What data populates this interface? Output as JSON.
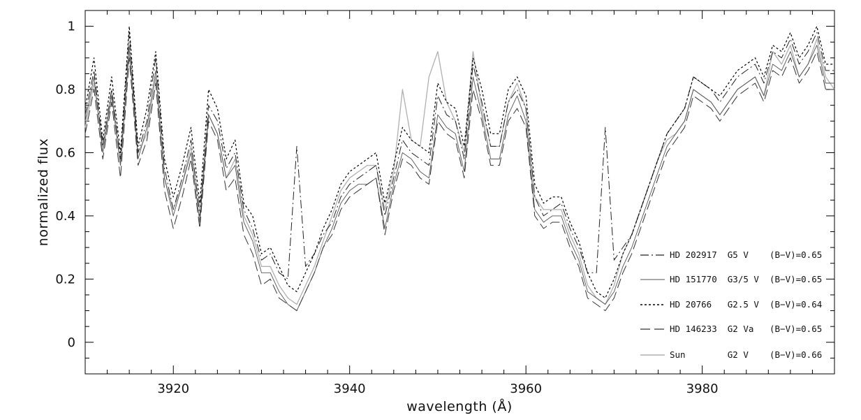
{
  "chart_data": {
    "type": "line",
    "xlabel": "wavelength (Å)",
    "ylabel": "normalized flux",
    "xlim": [
      3910,
      3995
    ],
    "ylim": [
      -0.1,
      1.05
    ],
    "x_ticks": [
      "3920",
      "3940",
      "3960",
      "3980"
    ],
    "y_ticks": [
      "0",
      "0.2",
      "0.4",
      "0.6",
      "0.8",
      "1"
    ],
    "grid": false,
    "legend_position": "bottom-right",
    "x": [
      3910,
      3911,
      3912,
      3913,
      3914,
      3915,
      3916,
      3917,
      3918,
      3919,
      3920,
      3921,
      3922,
      3923,
      3924,
      3925,
      3926,
      3927,
      3928,
      3929,
      3930,
      3931,
      3932,
      3933,
      3934,
      3935,
      3936,
      3937,
      3938,
      3939,
      3940,
      3941,
      3942,
      3943,
      3944,
      3945,
      3946,
      3947,
      3948,
      3949,
      3950,
      3951,
      3952,
      3953,
      3954,
      3955,
      3956,
      3957,
      3958,
      3959,
      3960,
      3961,
      3962,
      3963,
      3964,
      3965,
      3966,
      3967,
      3968,
      3969,
      3970,
      3971,
      3972,
      3973,
      3974,
      3975,
      3976,
      3977,
      3978,
      3979,
      3980,
      3981,
      3982,
      3983,
      3984,
      3985,
      3986,
      3987,
      3988,
      3989,
      3990,
      3991,
      3992,
      3993,
      3994,
      3995
    ],
    "series": [
      {
        "name": "HD 202917 G5 V (B−V)=0.65",
        "label": "HD 202917  G5 V    (B−V)=0.65",
        "dash": "12 4 2 4",
        "color": "#222222",
        "width": 1.0,
        "values": [
          0.72,
          0.86,
          0.62,
          0.8,
          0.58,
          0.98,
          0.6,
          0.7,
          0.9,
          0.55,
          0.42,
          0.52,
          0.64,
          0.4,
          0.75,
          0.7,
          0.55,
          0.6,
          0.42,
          0.36,
          0.26,
          0.28,
          0.22,
          0.2,
          0.62,
          0.24,
          0.28,
          0.34,
          0.38,
          0.46,
          0.5,
          0.52,
          0.54,
          0.56,
          0.4,
          0.52,
          0.64,
          0.6,
          0.58,
          0.56,
          0.78,
          0.72,
          0.7,
          0.58,
          0.88,
          0.76,
          0.62,
          0.62,
          0.76,
          0.8,
          0.74,
          0.46,
          0.4,
          0.42,
          0.44,
          0.36,
          0.3,
          0.22,
          0.22,
          0.68,
          0.26,
          0.3,
          0.34,
          0.42,
          0.5,
          0.58,
          0.66,
          0.7,
          0.74,
          0.84,
          0.82,
          0.8,
          0.76,
          0.8,
          0.84,
          0.86,
          0.88,
          0.82,
          0.92,
          0.9,
          0.96,
          0.88,
          0.92,
          0.98,
          0.86,
          0.86
        ]
      },
      {
        "name": "HD 151770 G3/5 V (B−V)=0.65",
        "label": "HD 151770  G3/5 V  (B−V)=0.65",
        "dash": "",
        "color": "#555555",
        "width": 0.9,
        "values": [
          0.7,
          0.84,
          0.6,
          0.78,
          0.56,
          0.94,
          0.58,
          0.68,
          0.86,
          0.52,
          0.4,
          0.5,
          0.6,
          0.38,
          0.72,
          0.66,
          0.52,
          0.56,
          0.38,
          0.32,
          0.22,
          0.22,
          0.16,
          0.12,
          0.1,
          0.16,
          0.22,
          0.3,
          0.36,
          0.44,
          0.48,
          0.5,
          0.5,
          0.52,
          0.36,
          0.5,
          0.6,
          0.58,
          0.54,
          0.52,
          0.72,
          0.68,
          0.66,
          0.54,
          0.84,
          0.72,
          0.58,
          0.58,
          0.72,
          0.78,
          0.7,
          0.42,
          0.38,
          0.4,
          0.4,
          0.32,
          0.26,
          0.16,
          0.14,
          0.12,
          0.16,
          0.24,
          0.3,
          0.38,
          0.46,
          0.54,
          0.62,
          0.66,
          0.7,
          0.8,
          0.78,
          0.76,
          0.72,
          0.76,
          0.8,
          0.82,
          0.84,
          0.78,
          0.88,
          0.86,
          0.92,
          0.84,
          0.88,
          0.94,
          0.82,
          0.82
        ]
      },
      {
        "name": "HD 20766 G2.5 V (B−V)=0.64",
        "label": "HD 20766   G2.5 V  (B−V)=0.64",
        "dash": "3 3",
        "color": "#000000",
        "width": 1.2,
        "values": [
          0.74,
          0.9,
          0.64,
          0.84,
          0.6,
          1.0,
          0.62,
          0.74,
          0.92,
          0.58,
          0.46,
          0.56,
          0.68,
          0.44,
          0.8,
          0.74,
          0.58,
          0.64,
          0.44,
          0.4,
          0.28,
          0.3,
          0.24,
          0.18,
          0.16,
          0.22,
          0.28,
          0.36,
          0.42,
          0.5,
          0.54,
          0.56,
          0.58,
          0.6,
          0.44,
          0.56,
          0.68,
          0.64,
          0.62,
          0.6,
          0.82,
          0.76,
          0.74,
          0.62,
          0.9,
          0.8,
          0.66,
          0.66,
          0.8,
          0.84,
          0.78,
          0.5,
          0.44,
          0.46,
          0.46,
          0.38,
          0.32,
          0.22,
          0.16,
          0.14,
          0.2,
          0.28,
          0.34,
          0.42,
          0.5,
          0.58,
          0.66,
          0.7,
          0.74,
          0.84,
          0.82,
          0.8,
          0.78,
          0.82,
          0.86,
          0.88,
          0.9,
          0.84,
          0.94,
          0.92,
          0.98,
          0.9,
          0.94,
          1.0,
          0.88,
          0.88
        ]
      },
      {
        "name": "HD 146233 G2 Va (B−V)=0.65",
        "label": "HD 146233  G2 Va   (B−V)=0.65",
        "dash": "14 6",
        "color": "#333333",
        "width": 1.0,
        "values": [
          0.66,
          0.8,
          0.58,
          0.76,
          0.52,
          0.9,
          0.56,
          0.64,
          0.82,
          0.48,
          0.36,
          0.46,
          0.58,
          0.36,
          0.7,
          0.64,
          0.48,
          0.52,
          0.34,
          0.28,
          0.18,
          0.2,
          0.14,
          0.12,
          0.1,
          0.16,
          0.22,
          0.3,
          0.34,
          0.42,
          0.46,
          0.48,
          0.5,
          0.52,
          0.34,
          0.48,
          0.58,
          0.56,
          0.52,
          0.5,
          0.7,
          0.66,
          0.64,
          0.52,
          0.8,
          0.7,
          0.56,
          0.56,
          0.7,
          0.74,
          0.68,
          0.4,
          0.36,
          0.38,
          0.38,
          0.3,
          0.24,
          0.14,
          0.12,
          0.1,
          0.14,
          0.22,
          0.28,
          0.36,
          0.44,
          0.52,
          0.6,
          0.64,
          0.68,
          0.78,
          0.76,
          0.74,
          0.7,
          0.74,
          0.78,
          0.8,
          0.82,
          0.76,
          0.86,
          0.84,
          0.9,
          0.82,
          0.86,
          0.92,
          0.8,
          0.8
        ]
      },
      {
        "name": "Sun G2 V (B−V)=0.66",
        "label": "Sun        G2 V    (B−V)=0.66",
        "dash": "",
        "color": "#b0b0b0",
        "width": 1.3,
        "values": [
          0.68,
          0.82,
          0.62,
          0.8,
          0.56,
          0.92,
          0.6,
          0.66,
          0.84,
          0.52,
          0.42,
          0.5,
          0.62,
          0.42,
          0.72,
          0.66,
          0.52,
          0.58,
          0.4,
          0.34,
          0.24,
          0.24,
          0.18,
          0.14,
          0.12,
          0.18,
          0.24,
          0.32,
          0.4,
          0.48,
          0.52,
          0.54,
          0.56,
          0.56,
          0.42,
          0.54,
          0.8,
          0.64,
          0.62,
          0.84,
          0.92,
          0.76,
          0.7,
          0.6,
          0.92,
          0.74,
          0.62,
          0.62,
          0.76,
          0.82,
          0.74,
          0.46,
          0.42,
          0.42,
          0.42,
          0.34,
          0.28,
          0.18,
          0.14,
          0.12,
          0.18,
          0.28,
          0.34,
          0.42,
          0.5,
          0.58,
          0.64,
          0.66,
          0.7,
          0.8,
          0.78,
          0.76,
          0.72,
          0.76,
          0.8,
          0.82,
          0.84,
          0.78,
          0.92,
          0.88,
          0.94,
          0.84,
          0.88,
          0.96,
          0.84,
          0.8
        ]
      }
    ]
  }
}
